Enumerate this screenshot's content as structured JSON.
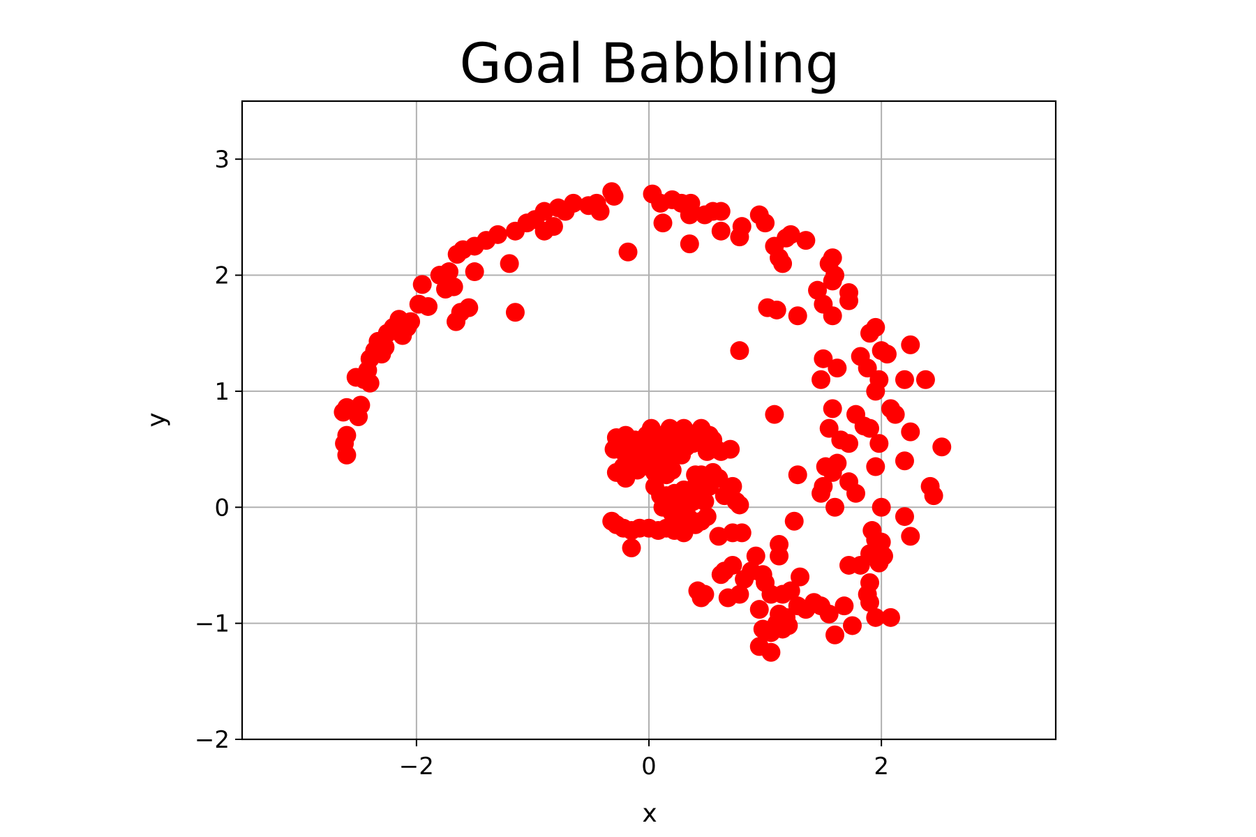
{
  "chart_data": {
    "type": "scatter",
    "title": "Goal Babbling",
    "xlabel": "x",
    "ylabel": "y",
    "xlim": [
      -3.5,
      3.5
    ],
    "ylim": [
      -2,
      3.5
    ],
    "xticks": [
      -2,
      0,
      2
    ],
    "xtick_labels": [
      "−2",
      "0",
      "2"
    ],
    "yticks": [
      -2,
      -1,
      0,
      1,
      2,
      3
    ],
    "ytick_labels": [
      "−2",
      "−1",
      "0",
      "1",
      "2",
      "3"
    ],
    "grid": true,
    "marker_color": "#ff0000",
    "series": [
      {
        "color": "#ff0000",
        "points": [
          [
            -2.6,
            0.45
          ],
          [
            -2.62,
            0.55
          ],
          [
            -2.6,
            0.62
          ],
          [
            -2.63,
            0.82
          ],
          [
            -2.6,
            0.86
          ],
          [
            -2.5,
            0.78
          ],
          [
            -2.48,
            0.88
          ],
          [
            -2.52,
            1.12
          ],
          [
            -2.45,
            1.1
          ],
          [
            -2.4,
            1.07
          ],
          [
            -2.42,
            1.18
          ],
          [
            -2.4,
            1.28
          ],
          [
            -2.36,
            1.35
          ],
          [
            -2.33,
            1.43
          ],
          [
            -2.3,
            1.32
          ],
          [
            -2.27,
            1.38
          ],
          [
            -2.25,
            1.5
          ],
          [
            -2.2,
            1.55
          ],
          [
            -2.15,
            1.62
          ],
          [
            -2.12,
            1.48
          ],
          [
            -2.08,
            1.55
          ],
          [
            -2.05,
            1.6
          ],
          [
            -1.98,
            1.75
          ],
          [
            -1.95,
            1.92
          ],
          [
            -1.9,
            1.73
          ],
          [
            -1.8,
            2.0
          ],
          [
            -1.75,
            1.88
          ],
          [
            -1.72,
            2.03
          ],
          [
            -1.68,
            1.9
          ],
          [
            -1.66,
            1.6
          ],
          [
            -1.62,
            1.68
          ],
          [
            -1.55,
            1.72
          ],
          [
            -1.5,
            2.03
          ],
          [
            -1.65,
            2.18
          ],
          [
            -1.6,
            2.22
          ],
          [
            -1.5,
            2.25
          ],
          [
            -1.4,
            2.3
          ],
          [
            -1.3,
            2.35
          ],
          [
            -1.2,
            2.1
          ],
          [
            -1.15,
            1.68
          ],
          [
            -1.15,
            2.38
          ],
          [
            -1.05,
            2.45
          ],
          [
            -0.98,
            2.48
          ],
          [
            -0.9,
            2.55
          ],
          [
            -0.9,
            2.38
          ],
          [
            -0.82,
            2.42
          ],
          [
            -0.78,
            2.58
          ],
          [
            -0.72,
            2.55
          ],
          [
            -0.65,
            2.62
          ],
          [
            -0.52,
            2.6
          ],
          [
            -0.45,
            2.62
          ],
          [
            -0.42,
            2.55
          ],
          [
            -0.32,
            2.72
          ],
          [
            -0.3,
            2.68
          ],
          [
            -0.18,
            2.2
          ],
          [
            0.03,
            2.7
          ],
          [
            0.1,
            2.62
          ],
          [
            0.12,
            2.45
          ],
          [
            0.2,
            2.65
          ],
          [
            0.28,
            2.62
          ],
          [
            0.35,
            2.52
          ],
          [
            0.36,
            2.62
          ],
          [
            0.35,
            2.27
          ],
          [
            0.48,
            2.52
          ],
          [
            0.55,
            2.55
          ],
          [
            0.62,
            2.55
          ],
          [
            0.62,
            2.38
          ],
          [
            0.78,
            2.33
          ],
          [
            0.8,
            2.42
          ],
          [
            0.95,
            2.52
          ],
          [
            1.0,
            2.45
          ],
          [
            1.08,
            2.25
          ],
          [
            1.12,
            2.15
          ],
          [
            1.15,
            2.1
          ],
          [
            1.18,
            2.32
          ],
          [
            1.22,
            2.35
          ],
          [
            1.35,
            2.3
          ],
          [
            0.78,
            1.35
          ],
          [
            1.02,
            1.72
          ],
          [
            1.1,
            1.7
          ],
          [
            1.28,
            1.65
          ],
          [
            1.08,
            0.8
          ],
          [
            1.28,
            0.28
          ],
          [
            1.25,
            -0.12
          ],
          [
            1.45,
            1.87
          ],
          [
            1.5,
            1.75
          ],
          [
            1.55,
            2.1
          ],
          [
            1.58,
            2.15
          ],
          [
            1.58,
            1.95
          ],
          [
            1.6,
            2.0
          ],
          [
            1.58,
            1.65
          ],
          [
            1.72,
            1.85
          ],
          [
            1.72,
            1.78
          ],
          [
            1.5,
            1.28
          ],
          [
            1.48,
            1.1
          ],
          [
            1.62,
            1.2
          ],
          [
            1.58,
            0.85
          ],
          [
            1.55,
            0.68
          ],
          [
            1.65,
            0.58
          ],
          [
            1.72,
            0.55
          ],
          [
            1.78,
            0.8
          ],
          [
            1.85,
            0.7
          ],
          [
            1.9,
            0.68
          ],
          [
            1.88,
            1.2
          ],
          [
            1.82,
            1.3
          ],
          [
            1.9,
            1.5
          ],
          [
            1.95,
            1.55
          ],
          [
            2.0,
            1.35
          ],
          [
            2.05,
            1.32
          ],
          [
            1.98,
            1.1
          ],
          [
            1.95,
            1.0
          ],
          [
            2.08,
            0.85
          ],
          [
            2.12,
            0.8
          ],
          [
            1.95,
            0.35
          ],
          [
            1.98,
            0.55
          ],
          [
            2.0,
            0.0
          ],
          [
            2.2,
            1.1
          ],
          [
            2.25,
            1.4
          ],
          [
            2.38,
            1.1
          ],
          [
            2.25,
            0.65
          ],
          [
            2.2,
            0.4
          ],
          [
            2.42,
            0.18
          ],
          [
            2.45,
            0.1
          ],
          [
            2.52,
            0.52
          ],
          [
            2.2,
            -0.08
          ],
          [
            2.25,
            -0.25
          ],
          [
            1.52,
            0.35
          ],
          [
            1.5,
            0.18
          ],
          [
            1.48,
            0.12
          ],
          [
            1.58,
            0.3
          ],
          [
            1.62,
            0.38
          ],
          [
            1.6,
            0.0
          ],
          [
            1.72,
            0.22
          ],
          [
            1.78,
            0.12
          ],
          [
            1.72,
            -0.5
          ],
          [
            1.82,
            -0.5
          ],
          [
            1.92,
            -0.2
          ],
          [
            1.95,
            -0.28
          ],
          [
            2.0,
            -0.3
          ],
          [
            2.02,
            -0.42
          ],
          [
            1.9,
            -0.4
          ],
          [
            1.98,
            -0.48
          ],
          [
            1.9,
            -0.65
          ],
          [
            1.88,
            -0.75
          ],
          [
            1.9,
            -0.82
          ],
          [
            1.95,
            -0.95
          ],
          [
            2.08,
            -0.95
          ],
          [
            1.68,
            -0.85
          ],
          [
            1.6,
            -1.1
          ],
          [
            1.75,
            -1.02
          ],
          [
            1.55,
            -0.92
          ],
          [
            1.48,
            -0.85
          ],
          [
            1.42,
            -0.82
          ],
          [
            1.35,
            -0.88
          ],
          [
            1.28,
            -0.85
          ],
          [
            1.3,
            -0.6
          ],
          [
            1.12,
            -0.32
          ],
          [
            1.12,
            -0.42
          ],
          [
            1.22,
            -0.72
          ],
          [
            1.15,
            -0.75
          ],
          [
            1.05,
            -0.75
          ],
          [
            1.0,
            -0.65
          ],
          [
            0.98,
            -0.58
          ],
          [
            0.92,
            -0.42
          ],
          [
            0.88,
            -0.55
          ],
          [
            0.82,
            -0.62
          ],
          [
            0.78,
            -0.75
          ],
          [
            0.72,
            -0.5
          ],
          [
            0.65,
            -0.55
          ],
          [
            0.62,
            -0.58
          ],
          [
            0.68,
            -0.78
          ],
          [
            0.72,
            -0.22
          ],
          [
            0.8,
            -0.22
          ],
          [
            0.95,
            -0.88
          ],
          [
            0.98,
            -1.05
          ],
          [
            1.05,
            -1.08
          ],
          [
            1.1,
            -1.0
          ],
          [
            1.12,
            -0.92
          ],
          [
            1.18,
            -0.95
          ],
          [
            1.2,
            -1.02
          ],
          [
            0.95,
            -1.2
          ],
          [
            1.05,
            -1.25
          ],
          [
            1.15,
            -1.05
          ],
          [
            0.45,
            -0.78
          ],
          [
            0.48,
            -0.75
          ],
          [
            0.42,
            -0.72
          ],
          [
            0.6,
            -0.25
          ],
          [
            -0.32,
            -0.12
          ],
          [
            -0.28,
            -0.15
          ],
          [
            -0.22,
            -0.18
          ],
          [
            -0.15,
            -0.2
          ],
          [
            -0.15,
            -0.35
          ],
          [
            -0.08,
            -0.18
          ],
          [
            0.0,
            -0.18
          ],
          [
            0.08,
            -0.2
          ],
          [
            0.15,
            -0.18
          ],
          [
            0.22,
            -0.2
          ],
          [
            0.3,
            -0.22
          ],
          [
            -0.3,
            0.5
          ],
          [
            -0.28,
            0.6
          ],
          [
            -0.25,
            0.55
          ],
          [
            -0.22,
            0.48
          ],
          [
            -0.2,
            0.62
          ],
          [
            -0.18,
            0.52
          ],
          [
            -0.15,
            0.45
          ],
          [
            -0.12,
            0.58
          ],
          [
            -0.1,
            0.5
          ],
          [
            -0.08,
            0.42
          ],
          [
            -0.05,
            0.55
          ],
          [
            -0.02,
            0.62
          ],
          [
            0.0,
            0.48
          ],
          [
            0.02,
            0.68
          ],
          [
            0.05,
            0.4
          ],
          [
            0.08,
            0.52
          ],
          [
            0.1,
            0.45
          ],
          [
            0.12,
            0.62
          ],
          [
            0.15,
            0.5
          ],
          [
            0.18,
            0.68
          ],
          [
            0.2,
            0.42
          ],
          [
            0.22,
            0.55
          ],
          [
            0.25,
            0.6
          ],
          [
            0.28,
            0.45
          ],
          [
            0.3,
            0.68
          ],
          [
            0.32,
            0.52
          ],
          [
            0.35,
            0.62
          ],
          [
            0.38,
            0.55
          ],
          [
            0.42,
            0.58
          ],
          [
            0.45,
            0.68
          ],
          [
            0.48,
            0.55
          ],
          [
            0.52,
            0.62
          ],
          [
            0.55,
            0.58
          ],
          [
            0.58,
            0.5
          ],
          [
            0.62,
            0.48
          ],
          [
            0.7,
            0.5
          ],
          [
            -0.28,
            0.3
          ],
          [
            -0.22,
            0.35
          ],
          [
            -0.2,
            0.25
          ],
          [
            -0.15,
            0.38
          ],
          [
            -0.1,
            0.32
          ],
          [
            -0.05,
            0.4
          ],
          [
            0.0,
            0.35
          ],
          [
            0.05,
            0.3
          ],
          [
            0.1,
            0.38
          ],
          [
            0.15,
            0.28
          ],
          [
            0.2,
            0.32
          ],
          [
            0.15,
            0.1
          ],
          [
            0.18,
            0.0
          ],
          [
            0.2,
            -0.05
          ],
          [
            0.22,
            0.12
          ],
          [
            0.25,
            0.08
          ],
          [
            0.28,
            0.02
          ],
          [
            0.3,
            0.15
          ],
          [
            0.32,
            -0.02
          ],
          [
            0.35,
            0.1
          ],
          [
            0.38,
            0.05
          ],
          [
            0.4,
            0.18
          ],
          [
            0.42,
            0.22
          ],
          [
            0.45,
            0.12
          ],
          [
            0.48,
            0.05
          ],
          [
            0.5,
            -0.08
          ],
          [
            0.52,
            0.18
          ],
          [
            0.55,
            0.25
          ],
          [
            0.45,
            0.28
          ],
          [
            0.4,
            0.28
          ],
          [
            0.35,
            -0.1
          ],
          [
            0.3,
            -0.15
          ],
          [
            0.25,
            -0.08
          ],
          [
            0.12,
            0.0
          ],
          [
            0.1,
            0.1
          ],
          [
            0.05,
            0.18
          ],
          [
            0.4,
            -0.15
          ],
          [
            0.45,
            -0.12
          ],
          [
            0.5,
            0.48
          ],
          [
            0.55,
            0.3
          ],
          [
            0.6,
            0.25
          ],
          [
            0.65,
            0.1
          ],
          [
            0.7,
            0.12
          ],
          [
            0.72,
            0.18
          ],
          [
            0.75,
            0.05
          ],
          [
            0.78,
            0.02
          ]
        ]
      }
    ]
  }
}
